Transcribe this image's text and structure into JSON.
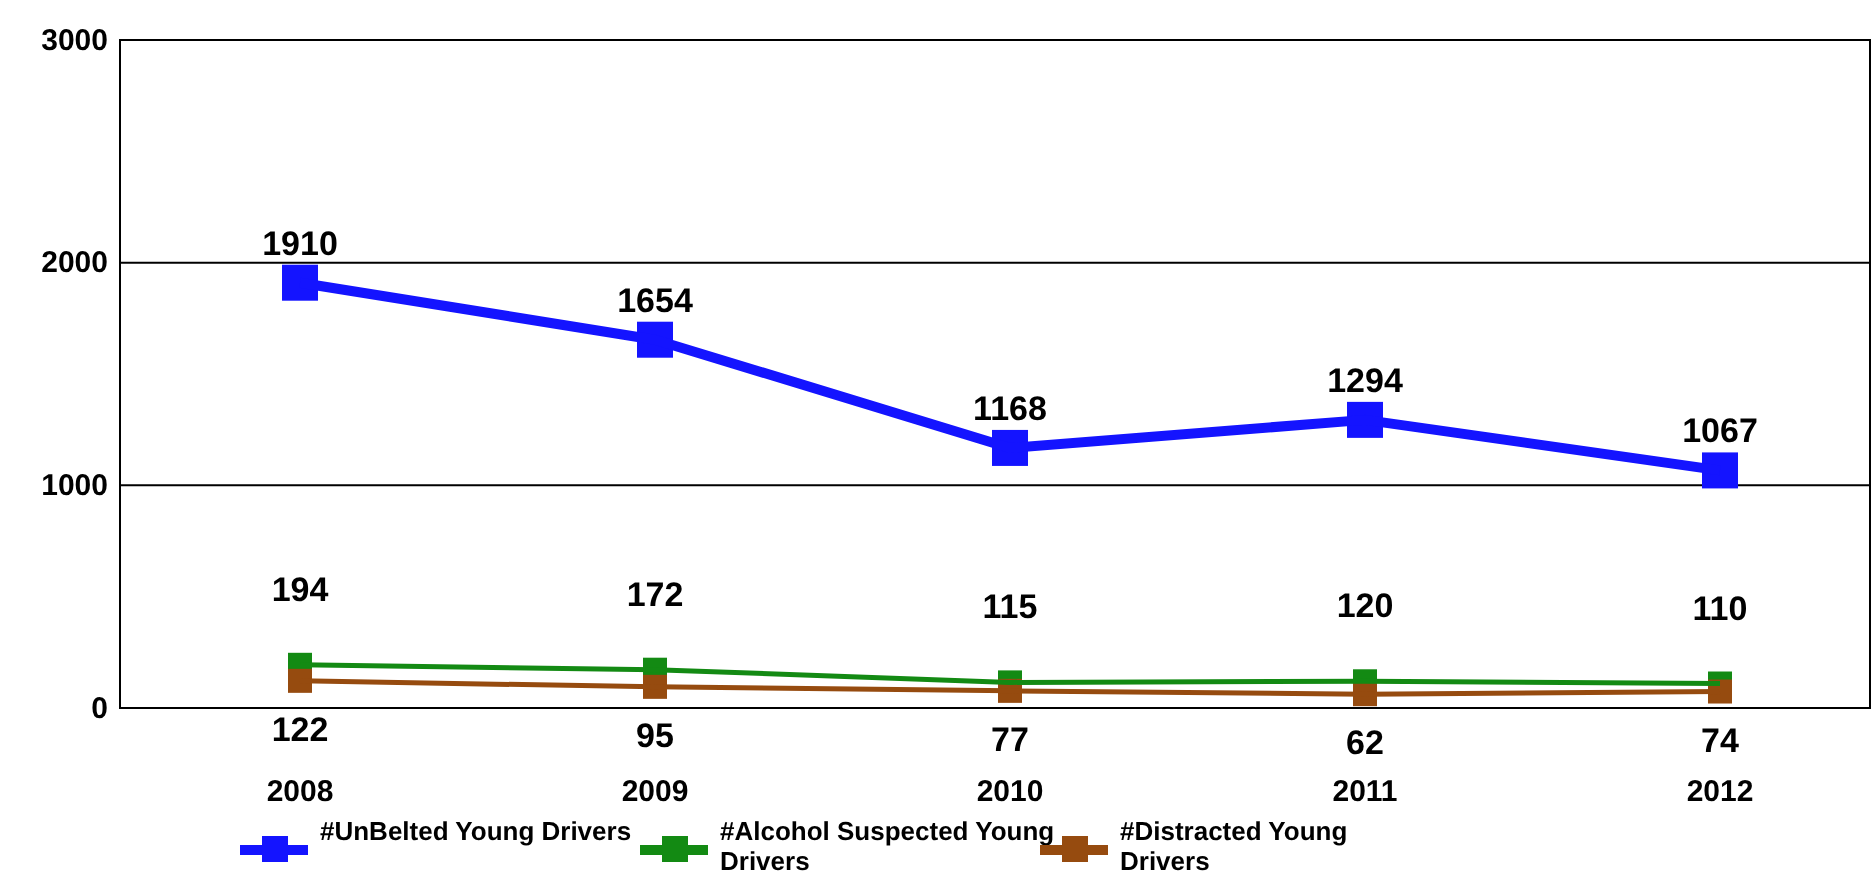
{
  "chart_data": {
    "type": "line",
    "categories": [
      "2008",
      "2009",
      "2010",
      "2011",
      "2012"
    ],
    "series": [
      {
        "name": "#UnBelted Young Drivers",
        "color": "#1414ff",
        "values": [
          1910,
          1654,
          1168,
          1294,
          1067
        ]
      },
      {
        "name": "#Alcohol Suspected Young Drivers",
        "color": "#138a13",
        "values": [
          194,
          172,
          115,
          120,
          110
        ]
      },
      {
        "name": "#Distracted Young Drivers",
        "color": "#964b0f",
        "values": [
          122,
          95,
          77,
          62,
          74
        ]
      }
    ],
    "ylim": [
      0,
      3000
    ],
    "yticks": [
      0,
      1000,
      2000,
      3000
    ],
    "grid": "y",
    "legend": "bottom left",
    "marker": "square",
    "line_style": "solid",
    "data_labels": true
  }
}
